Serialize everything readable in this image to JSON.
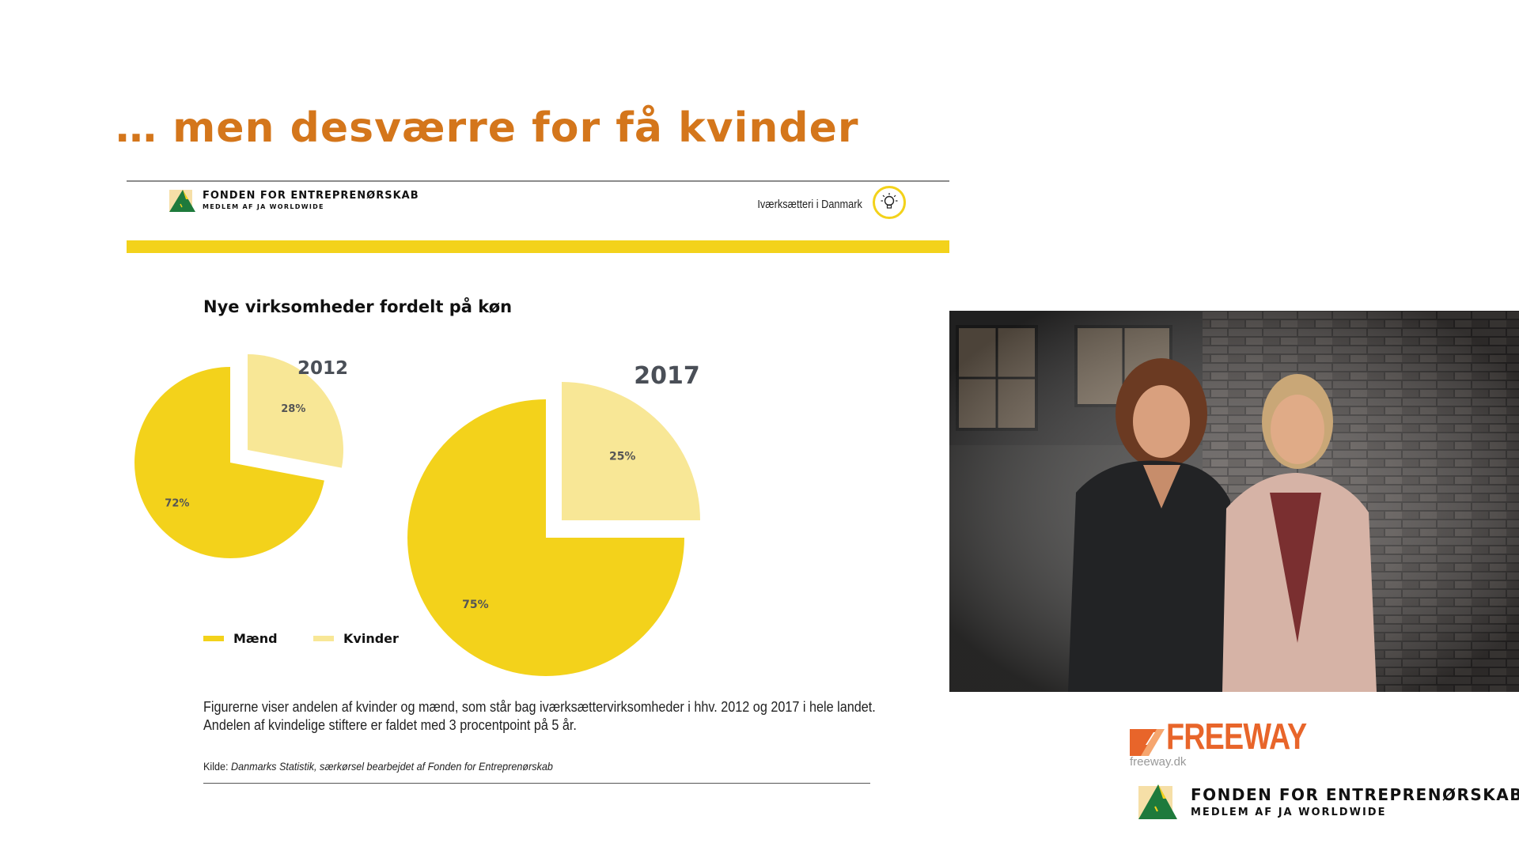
{
  "slide": {
    "title": "… men desværre for få kvinder"
  },
  "report": {
    "org_name": "FONDEN FOR ENTREPRENØRSKAB",
    "org_sub": "MEDLEM AF JA WORLDWIDE",
    "header_right": "Iværksætteri i Danmark",
    "icon": "lightbulb-icon",
    "caption_line1": "Figurerne viser andelen af kvinder og mænd, som står bag iværksættervirksomheder i hhv. 2012 og 2017 i hele landet.",
    "caption_line2": "Andelen af kvindelige stiftere er faldet med 3 procentpoint på 5 år.",
    "source_label": "Kilde:",
    "source_text": "Danmarks Statistik, særkørsel bearbejdet af Fonden for Entreprenørskab"
  },
  "chart_data": [
    {
      "type": "pie",
      "title": "Nye virksomheder fordelt på køn",
      "subtitle": "2012",
      "categories": [
        "Mænd",
        "Kvinder"
      ],
      "values": [
        72,
        28
      ],
      "labels": [
        "72%",
        "28%"
      ],
      "colors": [
        "#F3D21B",
        "#F8E796"
      ],
      "exploded": "Kvinder",
      "legend": "bottom-left"
    },
    {
      "type": "pie",
      "subtitle": "2017",
      "categories": [
        "Mænd",
        "Kvinder"
      ],
      "values": [
        75,
        25
      ],
      "labels": [
        "75%",
        "25%"
      ],
      "colors": [
        "#F3D21B",
        "#F8E796"
      ],
      "exploded": "Kvinder"
    }
  ],
  "legend": {
    "items": [
      {
        "label": "Mænd",
        "color": "#F3D21B"
      },
      {
        "label": "Kvinder",
        "color": "#F8E796"
      }
    ]
  },
  "photo": {
    "description_icon": "photo-two-women"
  },
  "freeway": {
    "word": "FREEWAY",
    "url": "freeway.dk",
    "color": "#E8652A"
  },
  "footer_logo": {
    "org_name": "FONDEN FOR ENTREPRENØRSKAB",
    "org_sub": "MEDLEM AF JA WORLDWIDE"
  },
  "colors": {
    "title": "#D4761B",
    "accent_yellow": "#F3D21B",
    "light_yellow": "#F8E796",
    "logo_green": "#1E7A3C"
  }
}
